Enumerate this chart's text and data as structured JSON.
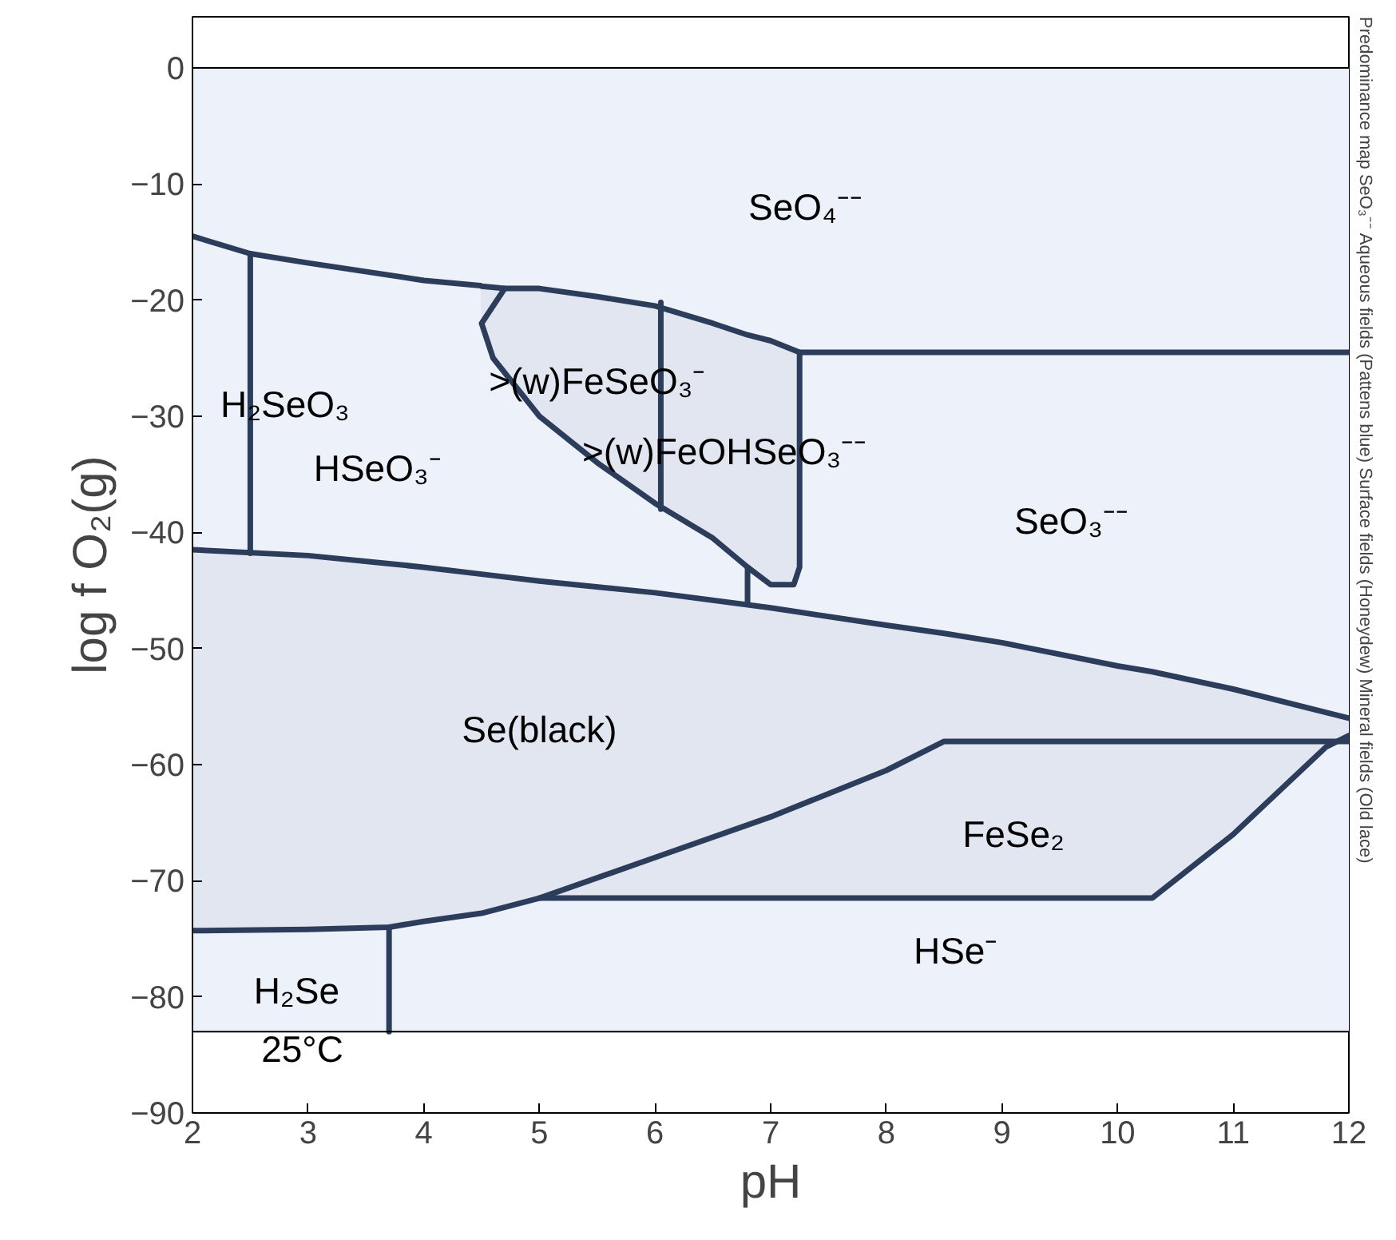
{
  "chart_data": {
    "type": "line",
    "xlabel": "pH",
    "ylabel": "log f O₂(g)",
    "xlim": [
      2,
      12
    ],
    "ylim": [
      -90,
      4.4
    ],
    "xticks": [
      2,
      3,
      4,
      5,
      6,
      7,
      8,
      9,
      10,
      11,
      12
    ],
    "yticks": [
      0,
      -10,
      -20,
      -30,
      -40,
      -50,
      -60,
      -70,
      -80,
      -90
    ],
    "grid": false,
    "bands": [
      {
        "axis": "y",
        "from": -83,
        "to": 0,
        "color": "#edf1fa"
      }
    ],
    "ref_lines": [
      {
        "axis": "y",
        "value": 0,
        "color": "#000000"
      },
      {
        "axis": "y",
        "value": -83,
        "color": "#000000"
      }
    ],
    "series": [
      {
        "color": "#2b3d5b",
        "x": [
          2,
          3,
          3.7,
          4,
          4.5,
          5,
          6,
          7,
          8,
          8.5,
          9,
          10,
          10.3,
          11,
          11.8,
          12
        ],
        "values": [
          -41.5,
          -42,
          -42.7,
          -43,
          -43.6,
          -44.2,
          -45.2,
          -46.5,
          -48,
          -48.7,
          -49.5,
          -51.5,
          -52,
          -53.5,
          -55.5,
          -56
        ],
        "upper": [
          -41.5,
          -42,
          -42.7,
          -43,
          -43.6,
          -44.2,
          -45.2,
          -46.5,
          -48,
          -48.7,
          -49.5,
          -51.5,
          -52,
          -53.5,
          -55.5,
          -56
        ],
        "lower": [
          -74.3,
          -74.2,
          -74,
          -73.5,
          -72.8,
          -71.5,
          -71.5,
          -71.5,
          -71.5,
          -71.5,
          -71.5,
          -71.5,
          -71.5,
          -66,
          -58.5,
          -57.5
        ]
      },
      {
        "color": "#2b3d5b",
        "x": [
          2,
          2.5,
          3,
          4,
          4.49,
          4.5,
          4.7,
          5,
          5.5,
          6,
          6.5,
          6.8,
          7,
          7.25,
          7.25,
          12
        ],
        "values": [
          -14.5,
          -16,
          -16.8,
          -18.3,
          -18.75,
          -18.8,
          -19,
          -19,
          -19.7,
          -20.5,
          -22,
          -23,
          -23.5,
          -24.5,
          -24.5,
          -24.5
        ],
        "upper": [
          -14.5,
          -16,
          -16.8,
          -18.3,
          -18.75,
          -18.8,
          -19,
          -19,
          -19.7,
          -20.5,
          -22,
          -23,
          -23.5,
          -24.5,
          -24.5,
          -24.5
        ],
        "lower": [
          -14.5,
          -16,
          -16.8,
          -18.3,
          -18.75,
          -22,
          -27,
          -30,
          -34,
          -37.5,
          -40.5,
          -43,
          -44.5,
          -44,
          -24.5,
          -24.5
        ]
      },
      {
        "color": "#2b3d5b",
        "x": [
          2.5,
          2.5
        ],
        "values": [
          -16,
          -41.8
        ]
      },
      {
        "color": "#2b3d5b",
        "x": [
          4.7,
          4.5,
          4.6,
          5,
          5.5,
          6,
          6.5,
          6.8,
          7,
          7.2,
          7.25,
          7.25
        ],
        "values": [
          -19,
          -22,
          -25,
          -30,
          -34,
          -37.5,
          -40.5,
          -43,
          -44.5,
          -44.5,
          -43,
          -24.5
        ]
      },
      {
        "color": "#2b3d5b",
        "x": [
          6.05,
          6.05
        ],
        "values": [
          -20.2,
          -38
        ]
      },
      {
        "color": "#2b3d5b",
        "x": [
          6.8,
          6.8
        ],
        "values": [
          -43,
          -46
        ]
      },
      {
        "color": "#2b3d5b",
        "x": [
          2,
          3,
          3.7,
          4,
          4.5,
          5,
          6,
          7,
          8,
          8.5,
          12
        ],
        "values": [
          -74.3,
          -74.2,
          -74,
          -73.5,
          -72.8,
          -71.5,
          -68,
          -64.5,
          -60.5,
          -58,
          -58
        ]
      },
      {
        "color": "#2b3d5b",
        "x": [
          5,
          10.3,
          11,
          11.8,
          12
        ],
        "values": [
          -71.5,
          -71.5,
          -66,
          -58.5,
          -57.5
        ]
      },
      {
        "color": "#2b3d5b",
        "x": [
          3.7,
          3.7
        ],
        "values": [
          -74,
          -83
        ]
      }
    ],
    "annotations": [
      "SeO₄⁻⁻",
      "H₂SeO₃",
      "HSeO₃⁻",
      ">(w)FeSeO₃⁻",
      ">(w)FeOHSeO₃⁻⁻",
      "SeO₃⁻⁻",
      "Se(black)",
      "FeSe₂",
      "HSe⁻",
      "H₂Se",
      "25°C",
      "Predominance map SeO₃⁻⁻ Aqueous fields (Pattens blue) Surface fields (Honeydew) Mineral fields (Old lace)"
    ]
  }
}
